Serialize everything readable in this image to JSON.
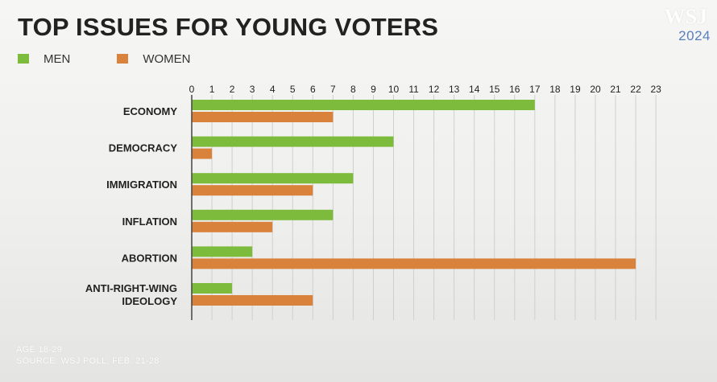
{
  "chart_data": {
    "type": "bar",
    "orientation": "horizontal",
    "title": "TOP ISSUES FOR YOUNG VOTERS",
    "categories": [
      "ECONOMY",
      "DEMOCRACY",
      "IMMIGRATION",
      "INFLATION",
      "ABORTION",
      "ANTI-RIGHT-WING IDEOLOGY"
    ],
    "category_lines": [
      [
        "ECONOMY"
      ],
      [
        "DEMOCRACY"
      ],
      [
        "IMMIGRATION"
      ],
      [
        "INFLATION"
      ],
      [
        "ABORTION"
      ],
      [
        "ANTI-RIGHT-WING",
        "IDEOLOGY"
      ]
    ],
    "series": [
      {
        "name": "MEN",
        "color": "#7dbb3c",
        "values": [
          17,
          10,
          8,
          7,
          3,
          2
        ]
      },
      {
        "name": "WOMEN",
        "color": "#d9823b",
        "values": [
          7,
          1,
          6,
          4,
          22,
          6
        ]
      }
    ],
    "xlim": [
      0,
      23
    ],
    "xticks": [
      0,
      1,
      2,
      3,
      4,
      5,
      6,
      7,
      8,
      9,
      10,
      11,
      12,
      13,
      14,
      15,
      16,
      17,
      18,
      19,
      20,
      21,
      22,
      23
    ],
    "grid": true,
    "legend_position": "top-left",
    "xlabel": "",
    "ylabel": ""
  },
  "header": {
    "title": "TOP ISSUES FOR YOUNG VOTERS",
    "logo_text": "WSJ",
    "year_badge": "2024"
  },
  "legend": {
    "men_label": "MEN",
    "women_label": "WOMEN",
    "men_color": "#7dbb3c",
    "women_color": "#d9823b"
  },
  "footnote": {
    "age": "AGE 18-29",
    "source": "SOURCE: WSJ POLL, FEB. 21-28"
  }
}
